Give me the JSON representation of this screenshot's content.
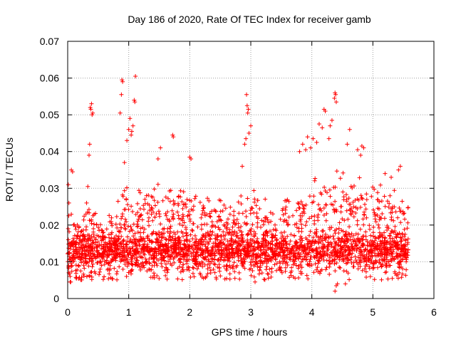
{
  "chart_data": {
    "type": "scatter",
    "title": "Day 186 of 2020, Rate Of TEC Index for receiver gamb",
    "xlabel": "GPS time / hours",
    "ylabel": "ROTI / TECUs",
    "xlim": [
      0,
      6
    ],
    "ylim": [
      0,
      0.07
    ],
    "xticks": [
      0,
      1,
      2,
      3,
      4,
      5,
      6
    ],
    "yticks": [
      0,
      0.01,
      0.02,
      0.03,
      0.04,
      0.05,
      0.06,
      0.07
    ],
    "xtick_labels": [
      "0",
      "1",
      "2",
      "3",
      "4",
      "5",
      "6"
    ],
    "ytick_labels": [
      "0",
      "0.01",
      "0.02",
      "0.03",
      "0.04",
      "0.05",
      "0.06",
      "0.07"
    ],
    "grid": true,
    "marker": "+",
    "color": "#ff0000",
    "x_data_range": [
      0,
      5.58
    ],
    "approx_point_count": 3000,
    "baseline_band": [
      0.005,
      0.02
    ],
    "series": [
      {
        "name": "ROTI",
        "points": [
          [
            0.01,
            0.031
          ],
          [
            0.02,
            0.026
          ],
          [
            0.04,
            0.0045
          ],
          [
            0.06,
            0.035
          ],
          [
            0.08,
            0.0345
          ],
          [
            0.3,
            0.023
          ],
          [
            0.31,
            0.026
          ],
          [
            0.33,
            0.0305
          ],
          [
            0.35,
            0.039
          ],
          [
            0.36,
            0.042
          ],
          [
            0.37,
            0.052
          ],
          [
            0.38,
            0.0515
          ],
          [
            0.39,
            0.053
          ],
          [
            0.4,
            0.05
          ],
          [
            0.41,
            0.0505
          ],
          [
            0.86,
            0.0505
          ],
          [
            0.88,
            0.0555
          ],
          [
            0.89,
            0.0595
          ],
          [
            0.9,
            0.059
          ],
          [
            0.93,
            0.037
          ],
          [
            0.97,
            0.043
          ],
          [
            1.0,
            0.046
          ],
          [
            1.02,
            0.049
          ],
          [
            1.04,
            0.0445
          ],
          [
            1.05,
            0.0455
          ],
          [
            1.07,
            0.047
          ],
          [
            1.09,
            0.054
          ],
          [
            1.1,
            0.0535
          ],
          [
            1.11,
            0.0605
          ],
          [
            1.48,
            0.038
          ],
          [
            1.52,
            0.041
          ],
          [
            1.72,
            0.0445
          ],
          [
            1.73,
            0.044
          ],
          [
            2.0,
            0.0385
          ],
          [
            2.02,
            0.038
          ],
          [
            2.86,
            0.036
          ],
          [
            2.9,
            0.042
          ],
          [
            2.92,
            0.0435
          ],
          [
            2.93,
            0.0555
          ],
          [
            2.94,
            0.0525
          ],
          [
            2.95,
            0.0505
          ],
          [
            2.96,
            0.0515
          ],
          [
            2.97,
            0.045
          ],
          [
            3.0,
            0.047
          ],
          [
            3.8,
            0.04
          ],
          [
            3.85,
            0.042
          ],
          [
            3.9,
            0.0405
          ],
          [
            3.93,
            0.044
          ],
          [
            3.98,
            0.041
          ],
          [
            4.02,
            0.0435
          ],
          [
            4.08,
            0.0425
          ],
          [
            4.12,
            0.0475
          ],
          [
            4.17,
            0.0465
          ],
          [
            4.2,
            0.0515
          ],
          [
            4.22,
            0.051
          ],
          [
            4.28,
            0.0435
          ],
          [
            4.3,
            0.047
          ],
          [
            4.33,
            0.0485
          ],
          [
            4.37,
            0.0545
          ],
          [
            4.38,
            0.056
          ],
          [
            4.39,
            0.0555
          ],
          [
            4.4,
            0.0535
          ],
          [
            4.58,
            0.042
          ],
          [
            4.62,
            0.046
          ],
          [
            4.75,
            0.0405
          ],
          [
            4.8,
            0.039
          ],
          [
            4.82,
            0.0415
          ],
          [
            4.85,
            0.041
          ],
          [
            5.2,
            0.034
          ],
          [
            5.3,
            0.033
          ],
          [
            5.42,
            0.035
          ],
          [
            5.45,
            0.036
          ],
          [
            4.38,
            0.002
          ],
          [
            4.4,
            0.0035
          ],
          [
            4.42,
            0.004
          ],
          [
            4.55,
            0.004
          ],
          [
            0.05,
            0.0045
          ],
          [
            0.04,
            0.006
          ],
          [
            3.07,
            0.0045
          ]
        ]
      }
    ],
    "activity_profile": {
      "note": "upper envelope of the dense point cloud (ROTI, TECUs) vs GPS hours",
      "hours": [
        0.0,
        0.2,
        0.4,
        0.6,
        0.8,
        1.0,
        1.2,
        1.4,
        1.6,
        1.8,
        2.0,
        2.2,
        2.4,
        2.6,
        2.8,
        3.0,
        3.2,
        3.4,
        3.6,
        3.8,
        4.0,
        4.2,
        4.4,
        4.6,
        4.8,
        5.0,
        5.2,
        5.4,
        5.58
      ],
      "envelope": [
        0.024,
        0.022,
        0.025,
        0.022,
        0.026,
        0.032,
        0.029,
        0.031,
        0.032,
        0.03,
        0.031,
        0.027,
        0.029,
        0.027,
        0.03,
        0.03,
        0.028,
        0.026,
        0.027,
        0.031,
        0.033,
        0.033,
        0.036,
        0.033,
        0.033,
        0.032,
        0.031,
        0.029,
        0.026
      ]
    }
  }
}
